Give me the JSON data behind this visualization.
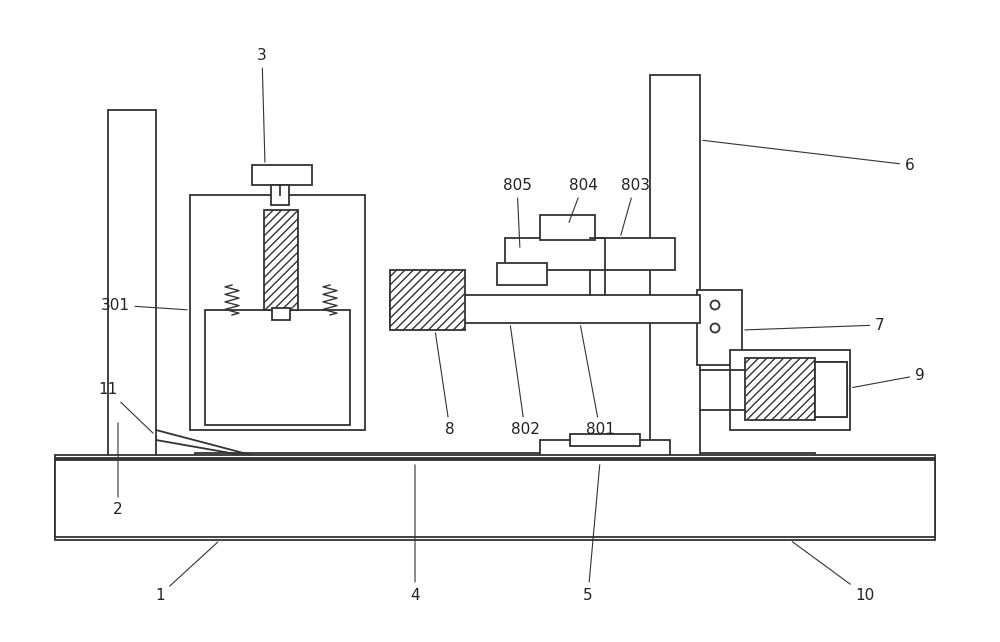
{
  "fig_width": 10.0,
  "fig_height": 6.42,
  "dpi": 100,
  "bg_color": "#ffffff",
  "lc": "#333333",
  "lw": 1.3,
  "fs": 11.0
}
